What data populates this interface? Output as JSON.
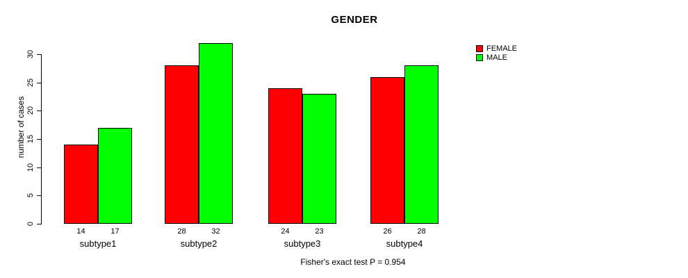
{
  "chart_data": {
    "type": "bar",
    "title": "GENDER",
    "categories": [
      "subtype1",
      "subtype2",
      "subtype3",
      "subtype4"
    ],
    "series": [
      {
        "name": "FEMALE",
        "color": "#ff0000",
        "values": [
          14,
          28,
          24,
          26
        ]
      },
      {
        "name": "MALE",
        "color": "#00ff00",
        "values": [
          17,
          32,
          23,
          28
        ]
      }
    ],
    "xlabel": "",
    "ylabel": "number of cases",
    "ylim": [
      0,
      30
    ],
    "yticks": [
      0,
      5,
      10,
      15,
      20,
      25,
      30
    ],
    "bar_value_labels_shown": true,
    "legend_position": "top-right",
    "grid": false,
    "annotation": "Fisher's exact test P = 0.954"
  }
}
